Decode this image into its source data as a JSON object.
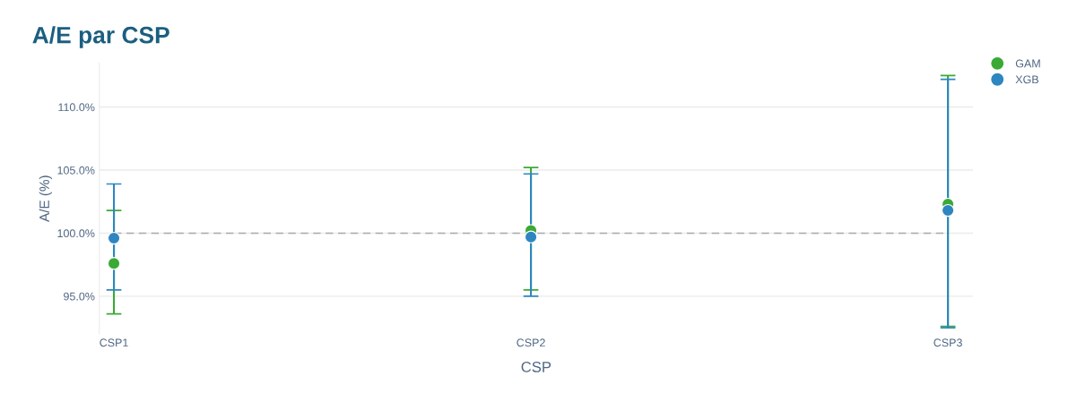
{
  "chart_data": {
    "type": "scatter",
    "title": "A/E par CSP",
    "xlabel": "CSP",
    "ylabel": "A/E (%)",
    "categories": [
      "CSP1",
      "CSP2",
      "CSP3"
    ],
    "series": [
      {
        "name": "GAM",
        "color": "#3aaa35",
        "values": [
          97.6,
          100.2,
          102.3
        ],
        "errors": [
          [
            93.6,
            101.8
          ],
          [
            95.5,
            105.2
          ],
          [
            92.6,
            112.5
          ]
        ]
      },
      {
        "name": "XGB",
        "color": "#2e86c1",
        "values": [
          99.6,
          99.7,
          101.8
        ],
        "errors": [
          [
            95.5,
            103.9
          ],
          [
            95.0,
            104.7
          ],
          [
            92.5,
            112.2
          ]
        ]
      }
    ],
    "ylim": [
      92,
      113.5
    ],
    "yticks": [
      {
        "value": 95,
        "label": "95.0%"
      },
      {
        "value": 100,
        "label": "100.0%"
      },
      {
        "value": 105,
        "label": "105.0%"
      },
      {
        "value": 110,
        "label": "110.0%"
      }
    ],
    "ref_lines": [
      {
        "axis": "y",
        "value": 100,
        "color": "#aaaaaa",
        "line_style": "dashed"
      }
    ],
    "grid": "y",
    "legend": "top right",
    "marker": "circle"
  }
}
